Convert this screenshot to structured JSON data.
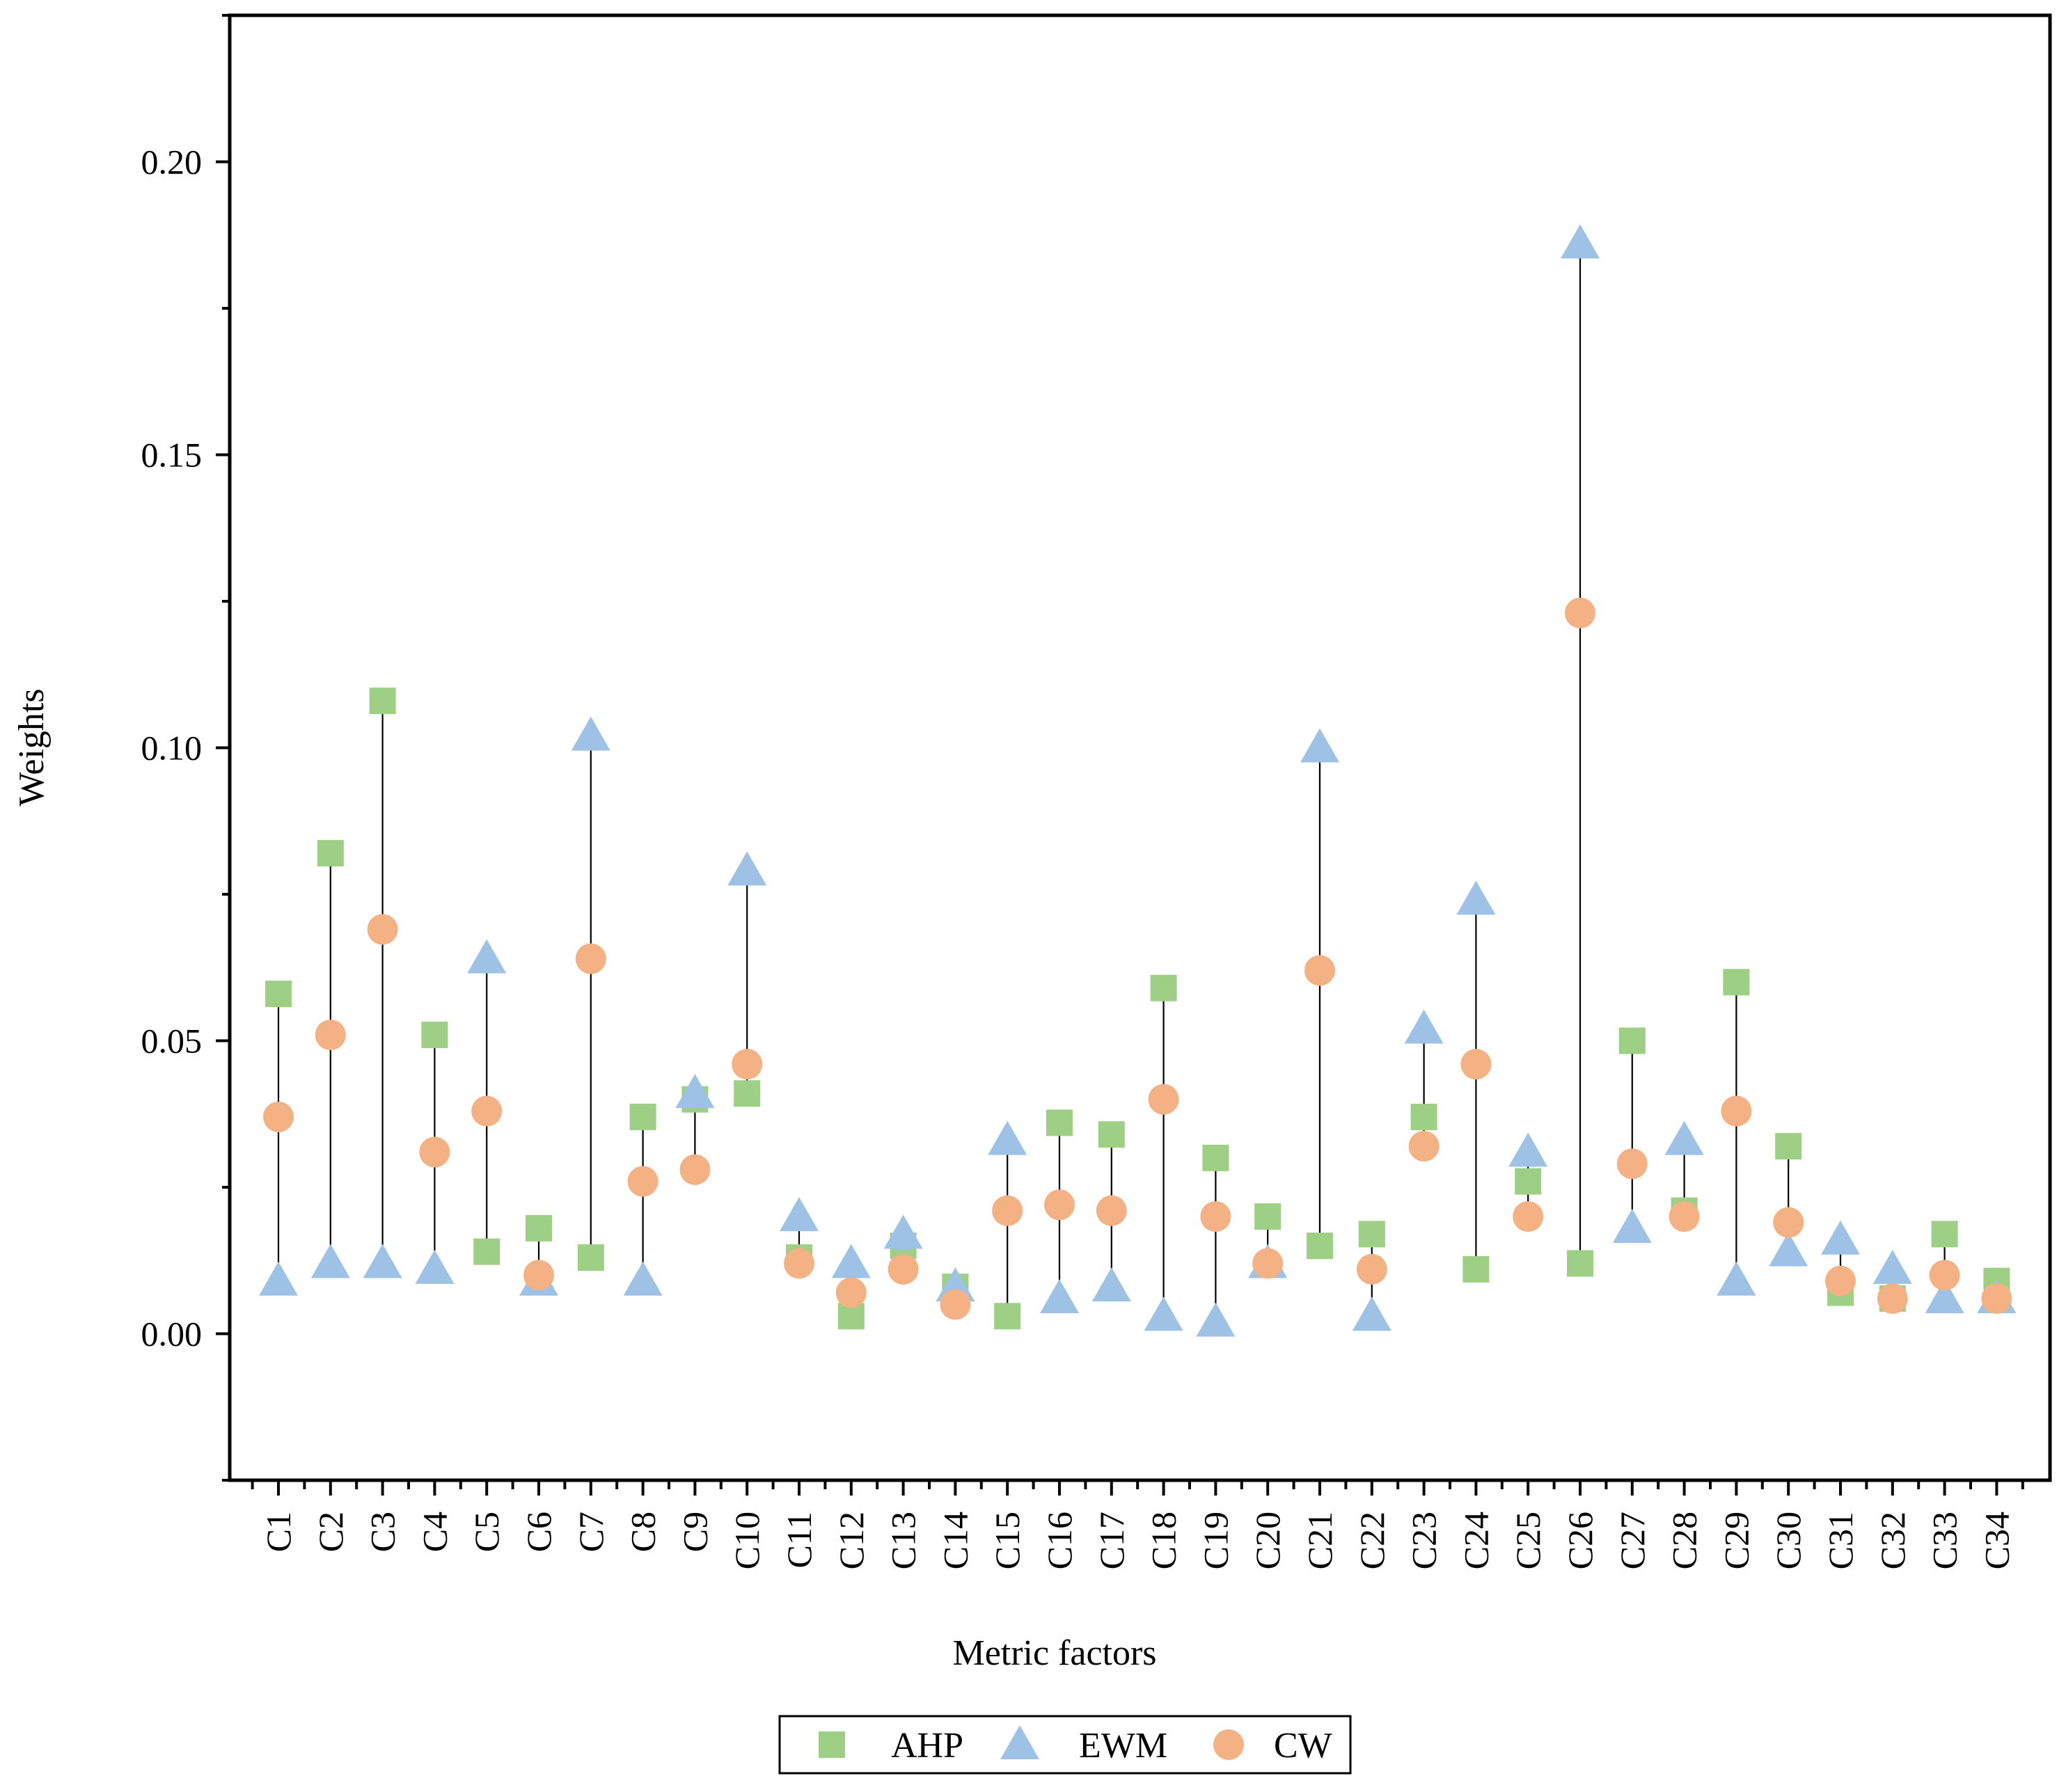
{
  "chart_data": {
    "type": "scatter",
    "title": "",
    "xlabel": "Metric factors",
    "ylabel": "Weights",
    "ylim": [
      -0.025,
      0.225
    ],
    "yticks": [
      "0.00",
      "0.05",
      "0.10",
      "0.15",
      "0.20"
    ],
    "grid": false,
    "legend_position": "bottom-center",
    "categories": [
      "C1",
      "C2",
      "C3",
      "C4",
      "C5",
      "C6",
      "C7",
      "C8",
      "C9",
      "C10",
      "C11",
      "C12",
      "C13",
      "C14",
      "C15",
      "C16",
      "C17",
      "C18",
      "C19",
      "C20",
      "C21",
      "C22",
      "C23",
      "C24",
      "C25",
      "C26",
      "C27",
      "C28",
      "C29",
      "C30",
      "C31",
      "C32",
      "C33",
      "C34"
    ],
    "series": [
      {
        "name": "AHP",
        "marker": "square",
        "color": "#9dcf84",
        "values": [
          0.058,
          0.082,
          0.108,
          0.051,
          0.014,
          0.018,
          0.013,
          0.037,
          0.04,
          0.041,
          0.013,
          0.003,
          0.015,
          0.008,
          0.003,
          0.036,
          0.034,
          0.059,
          0.03,
          0.02,
          0.015,
          0.017,
          0.037,
          0.011,
          0.026,
          0.012,
          0.05,
          0.021,
          0.06,
          0.032,
          0.007,
          0.006,
          0.017,
          0.009
        ]
      },
      {
        "name": "EWM",
        "marker": "triangle",
        "color": "#9dc2e6",
        "values": [
          0.009,
          0.012,
          0.012,
          0.011,
          0.064,
          0.009,
          0.102,
          0.009,
          0.041,
          0.079,
          0.02,
          0.012,
          0.017,
          0.008,
          0.033,
          0.006,
          0.008,
          0.003,
          0.002,
          0.012,
          0.1,
          0.003,
          0.052,
          0.074,
          0.031,
          0.186,
          0.018,
          0.033,
          0.009,
          0.014,
          0.016,
          0.011,
          0.006,
          0.006
        ]
      },
      {
        "name": "CW",
        "marker": "circle",
        "color": "#f4b183",
        "values": [
          0.037,
          0.051,
          0.069,
          0.031,
          0.038,
          0.01,
          0.064,
          0.026,
          0.028,
          0.046,
          0.012,
          0.007,
          0.011,
          0.005,
          0.021,
          0.022,
          0.021,
          0.04,
          0.02,
          0.012,
          0.062,
          0.011,
          0.032,
          0.046,
          0.02,
          0.123,
          0.029,
          0.02,
          0.038,
          0.019,
          0.009,
          0.006,
          0.01,
          0.006
        ]
      }
    ]
  }
}
